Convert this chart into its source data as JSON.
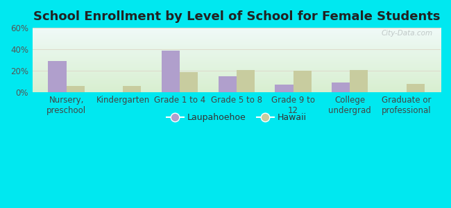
{
  "title": "School Enrollment by Level of School for Female Students",
  "categories": [
    "Nursery,\npreschool",
    "Kindergarten",
    "Grade 1 to 4",
    "Grade 5 to 8",
    "Grade 9 to\n12",
    "College\nundergrad",
    "Graduate or\nprofessional"
  ],
  "laupahoehoe": [
    29,
    0,
    39,
    15,
    7,
    9,
    0
  ],
  "hawaii": [
    6,
    6,
    19,
    21,
    20,
    21,
    8
  ],
  "bar_color_laup": "#b09fcc",
  "bar_color_hawaii": "#c8cc9f",
  "legend_laup": "Laupahoehoe",
  "legend_hawaii": "Hawaii",
  "ylim": [
    0,
    60
  ],
  "yticks": [
    0,
    20,
    40,
    60
  ],
  "ytick_labels": [
    "0%",
    "20%",
    "40%",
    "60%"
  ],
  "background_outer": "#00e8f0",
  "background_inner": "#e8f5e2",
  "grid_color": "#ddddcc",
  "watermark": "City-Data.com",
  "title_fontsize": 13,
  "tick_fontsize": 8.5,
  "legend_fontsize": 9
}
